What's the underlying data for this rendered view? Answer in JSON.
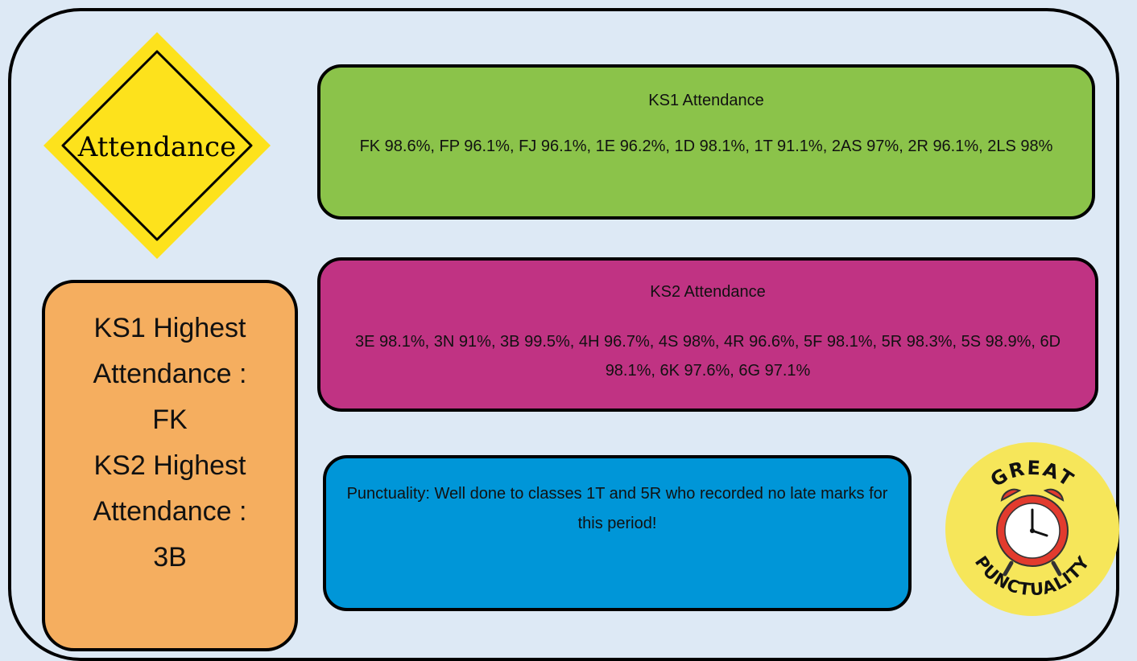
{
  "sign": {
    "label": "Attendance"
  },
  "ks1": {
    "title": "KS1 Attendance",
    "text": "FK 98.6%, FP 96.1%, FJ 96.1%, 1E 96.2%, 1D 98.1%, 1T 91.1%, 2AS 97%, 2R 96.1%, 2LS 98%"
  },
  "ks2": {
    "title": "KS2 Attendance",
    "text": "3E 98.1%, 3N 91%, 3B 99.5%, 4H 96.7%, 4S 98%, 4R 96.6%, 5F 98.1%, 5R 98.3%, 5S 98.9%, 6D 98.1%, 6K 97.6%, 6G 97.1%"
  },
  "highest": {
    "ks1_line1": "KS1 Highest",
    "ks1_line2": "Attendance :",
    "ks1_class": "FK",
    "ks2_line1": "KS2 Highest",
    "ks2_line2": "Attendance :",
    "ks2_class": "3B"
  },
  "punctuality": {
    "text": "Punctuality: Well done to classes 1T and 5R who recorded no late marks for this period!"
  },
  "badge": {
    "top": "GREAT",
    "bottom": "PUNCTUALITY"
  },
  "colors": {
    "background": "#dde9f5",
    "ks1_box": "#8bc34a",
    "ks2_box": "#c03383",
    "punctuality_box": "#0096d8",
    "highest_box": "#f5ae5f",
    "sign_yellow": "#fde21c",
    "badge_yellow": "#f6e65a",
    "clock_red": "#e23b2e"
  }
}
